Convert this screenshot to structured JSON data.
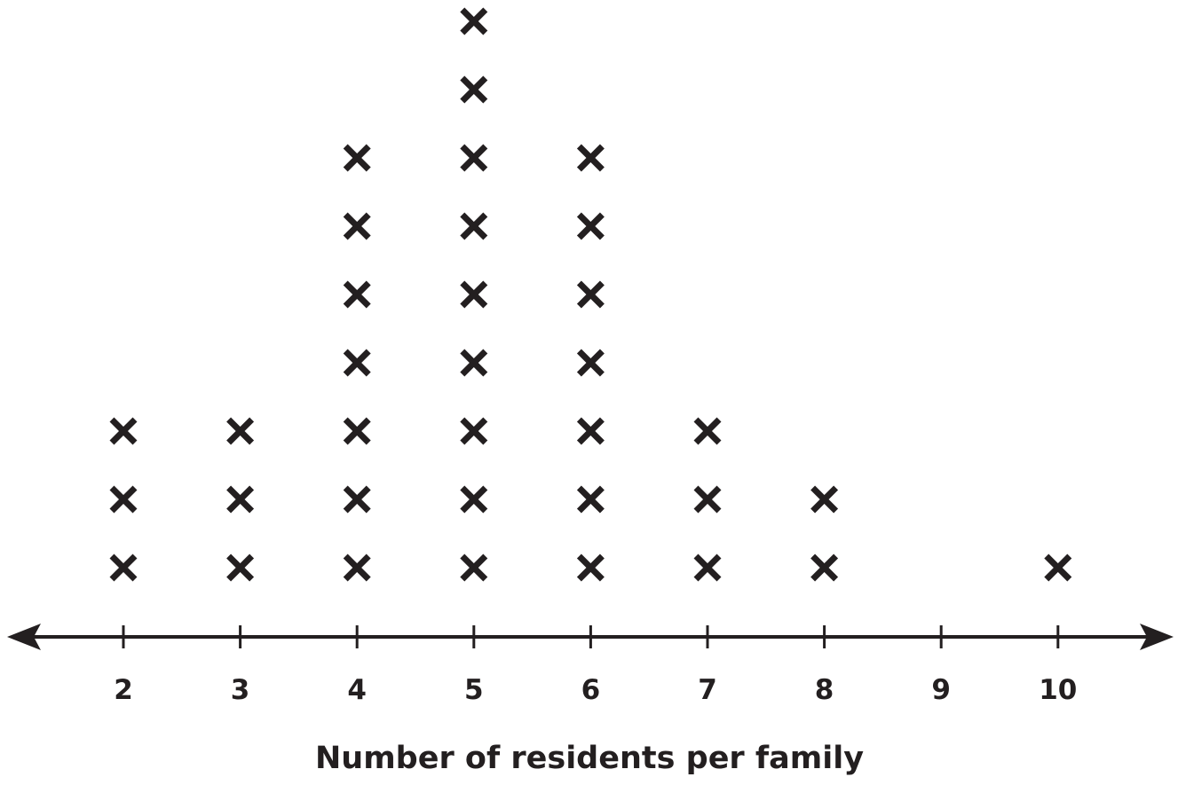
{
  "chart_data": {
    "type": "scatter",
    "subtype": "dot-plot",
    "title": "",
    "xlabel": "Number of residents per family",
    "ylabel": "",
    "marker": "X",
    "x_ticks": [
      2,
      3,
      4,
      5,
      6,
      7,
      8,
      9,
      10
    ],
    "x_tick_labels": [
      "2",
      "3",
      "4",
      "5",
      "6",
      "7",
      "8",
      "9",
      "10"
    ],
    "x_range": [
      2,
      10
    ],
    "grid": false,
    "legend": "none",
    "points": [
      {
        "x": 2,
        "count": 3
      },
      {
        "x": 3,
        "count": 3
      },
      {
        "x": 4,
        "count": 7
      },
      {
        "x": 5,
        "count": 9
      },
      {
        "x": 6,
        "count": 7
      },
      {
        "x": 7,
        "count": 3
      },
      {
        "x": 8,
        "count": 2
      },
      {
        "x": 9,
        "count": 0
      },
      {
        "x": 10,
        "count": 1
      }
    ]
  },
  "colors": {
    "ink": "#231f20",
    "background": "#ffffff"
  }
}
